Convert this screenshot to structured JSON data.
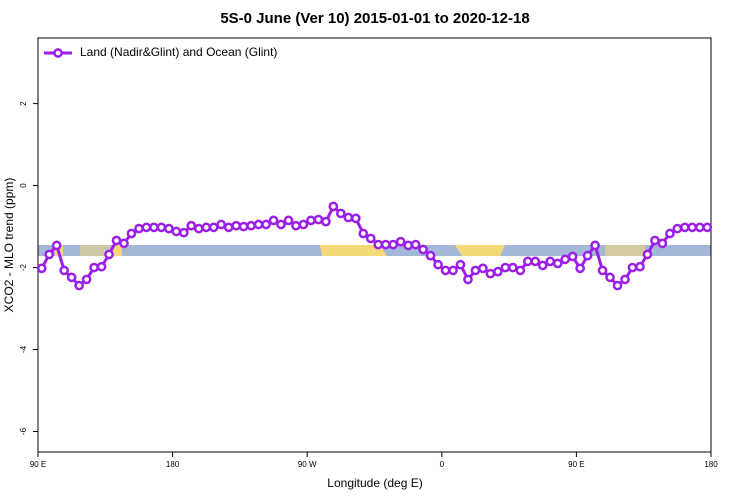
{
  "chart_data": {
    "type": "line",
    "title": "5S-0 June (Ver 10)   2015-01-01 to 2020-12-18",
    "x_label": "Longitude (deg E)",
    "y_label": "XCO2 - MLO trend (ppm)",
    "xlim": [
      90,
      540
    ],
    "xticks": [
      {
        "value": 90,
        "label": "90 E"
      },
      180,
      {
        "value": 270,
        "label": "90 W"
      },
      {
        "value": 360,
        "label": "0"
      },
      {
        "value": 450,
        "label": "90 E"
      },
      {
        "value": 540,
        "label": "180"
      }
    ],
    "ylim": [
      -6.5,
      3.6
    ],
    "yticks": [
      -6,
      -4,
      -2,
      0,
      2
    ],
    "legend_position": "top-left",
    "x": [
      92.5,
      97.5,
      102.5,
      107.5,
      112.5,
      117.5,
      122.5,
      127.5,
      132.5,
      137.5,
      142.5,
      147.5,
      152.5,
      157.5,
      162.5,
      167.5,
      172.5,
      177.5,
      182.5,
      187.5,
      192.5,
      197.5,
      202.5,
      207.5,
      212.5,
      217.5,
      222.5,
      227.5,
      232.5,
      237.5,
      242.5,
      247.5,
      252.5,
      257.5,
      262.5,
      267.5,
      272.5,
      277.5,
      282.5,
      287.5,
      292.5,
      297.5,
      302.5,
      307.5,
      312.5,
      317.5,
      322.5,
      327.5,
      332.5,
      337.5,
      342.5,
      347.5,
      352.5,
      357.5,
      362.5,
      367.5,
      372.5,
      377.5,
      382.5,
      387.5,
      392.5,
      397.5,
      402.5,
      407.5,
      412.5,
      417.5,
      422.5,
      427.5,
      432.5,
      437.5,
      442.5,
      447.5,
      452.5,
      457.5,
      462.5,
      467.5,
      472.5,
      477.5,
      482.5,
      487.5,
      492.5,
      497.5,
      502.5,
      507.5,
      512.5,
      517.5,
      522.5,
      527.5,
      532.5,
      537.5
    ],
    "series": [
      {
        "name": "Land (Nadir&Glint) and Ocean (Glint)",
        "color": "#9b1fe8",
        "values": [
          -2.02,
          -1.68,
          -1.46,
          -2.07,
          -2.24,
          -2.44,
          -2.29,
          -2.0,
          -1.98,
          -1.68,
          -1.34,
          -1.41,
          -1.17,
          -1.05,
          -1.02,
          -1.02,
          -1.02,
          -1.05,
          -1.12,
          -1.15,
          -0.98,
          -1.05,
          -1.02,
          -1.02,
          -0.95,
          -1.02,
          -0.98,
          -1.0,
          -0.98,
          -0.95,
          -0.95,
          -0.85,
          -0.95,
          -0.85,
          -0.98,
          -0.95,
          -0.85,
          -0.83,
          -0.88,
          -0.51,
          -0.68,
          -0.78,
          -0.8,
          -1.17,
          -1.29,
          -1.44,
          -1.44,
          -1.44,
          -1.37,
          -1.46,
          -1.44,
          -1.56,
          -1.71,
          -1.93,
          -2.07,
          -2.07,
          -1.93,
          -2.29,
          -2.07,
          -2.02,
          -2.15,
          -2.1,
          -2.0,
          -2.0,
          -2.07,
          -1.85,
          -1.85,
          -1.95,
          -1.85,
          -1.9,
          -1.8,
          -1.73,
          -2.02,
          -1.71,
          -1.46,
          -2.07,
          -2.24,
          -2.44,
          -2.29,
          -2.0,
          -1.98,
          -1.68,
          -1.34,
          -1.41,
          -1.17,
          -1.05,
          -1.02,
          -1.02,
          -1.02,
          -1.02
        ]
      }
    ]
  }
}
